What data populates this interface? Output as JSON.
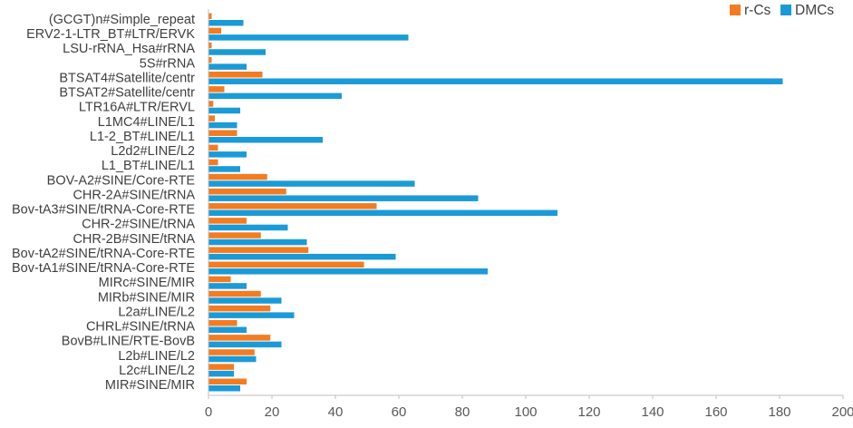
{
  "chart_data": {
    "type": "bar",
    "orientation": "horizontal",
    "xlim": [
      0,
      200
    ],
    "x_ticks": [
      0,
      20,
      40,
      60,
      80,
      100,
      120,
      140,
      160,
      180,
      200
    ],
    "grid": false,
    "legend_position": "top-right",
    "categories": [
      "(GCGT)n#Simple_repeat",
      "ERV2-1-LTR_BT#LTR/ERVK",
      "LSU-rRNA_Hsa#rRNA",
      "5S#rRNA",
      "BTSAT4#Satellite/centr",
      "BTSAT2#Satellite/centr",
      "LTR16A#LTR/ERVL",
      "L1MC4#LINE/L1",
      "L1-2_BT#LINE/L1",
      "L2d2#LINE/L2",
      "L1_BT#LINE/L1",
      "BOV-A2#SINE/Core-RTE",
      "CHR-2A#SINE/tRNA",
      "Bov-tA3#SINE/tRNA-Core-RTE",
      "CHR-2#SINE/tRNA",
      "CHR-2B#SINE/tRNA",
      "Bov-tA2#SINE/tRNA-Core-RTE",
      "Bov-tA1#SINE/tRNA-Core-RTE",
      "MIRc#SINE/MIR",
      "MIRb#SINE/MIR",
      "L2a#LINE/L2",
      "CHRL#SINE/tRNA",
      "BovB#LINE/RTE-BovB",
      "L2b#LINE/L2",
      "L2c#LINE/L2",
      "MIR#SINE/MIR"
    ],
    "series": [
      {
        "name": "r-Cs",
        "color": "#F47C20",
        "values": [
          1,
          4,
          1,
          1,
          17,
          5,
          1.5,
          2,
          9,
          3,
          3,
          18.5,
          24.5,
          53,
          12,
          16.5,
          31.5,
          49,
          7,
          16.5,
          19.5,
          9,
          19.5,
          14.5,
          8,
          12
        ]
      },
      {
        "name": "DMCs",
        "color": "#1A9BD7",
        "values": [
          11,
          63,
          18,
          12,
          181,
          42,
          10,
          9,
          36,
          12,
          10,
          65,
          85,
          110,
          25,
          31,
          59,
          88,
          12,
          23,
          27,
          12,
          23,
          15,
          8,
          10
        ]
      }
    ]
  }
}
